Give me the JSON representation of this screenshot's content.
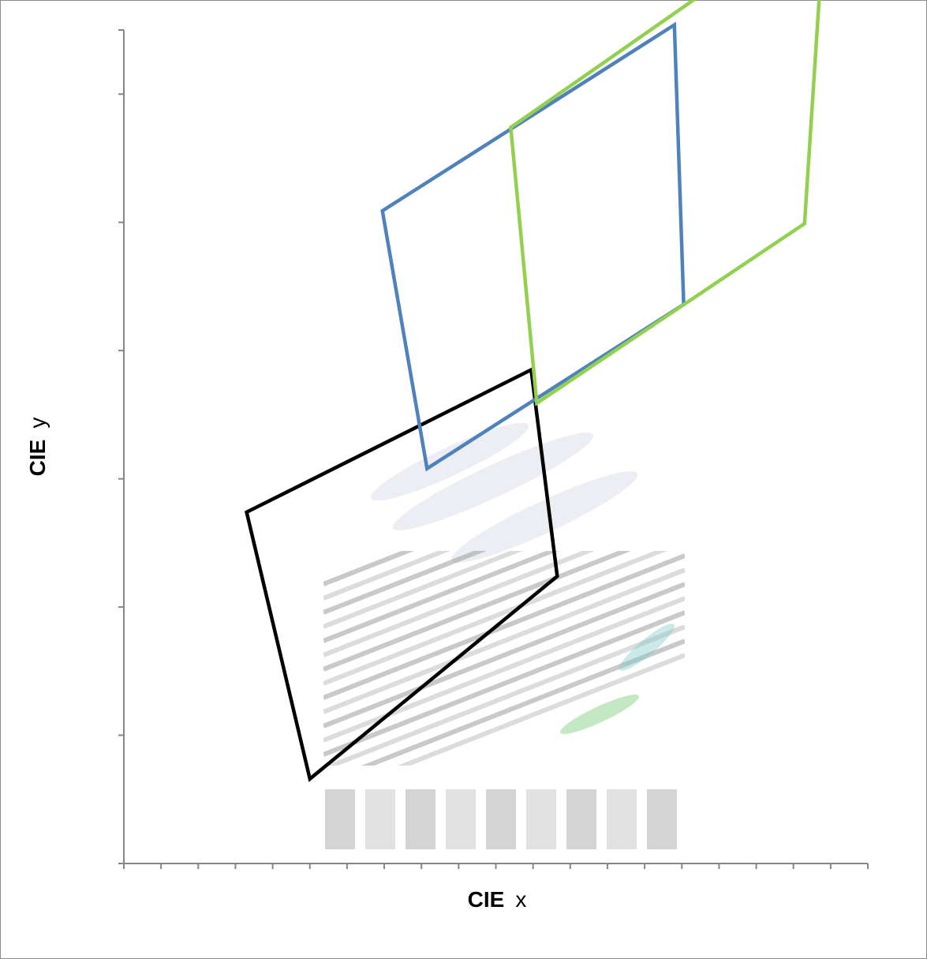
{
  "chart_data": {
    "type": "line",
    "title": "",
    "xlabel": {
      "bold": "CIE",
      "rest": "x"
    },
    "ylabel": {
      "bold": "CIE",
      "rest": "y"
    },
    "xlim": [
      0,
      0.4
    ],
    "ylim": [
      0,
      0.65
    ],
    "x_minor_tick_step": 0.02,
    "y_major_tick_step": 0.1,
    "grid": false,
    "legend": "none",
    "series": [
      {
        "color": "#000000",
        "closed": true,
        "x": [
          0.066,
          0.219,
          0.233,
          0.1
        ],
        "y": [
          0.274,
          0.385,
          0.224,
          0.066
        ]
      },
      {
        "color": "#4f81bd",
        "closed": true,
        "x": [
          0.139,
          0.296,
          0.301,
          0.163
        ],
        "y": [
          0.509,
          0.654,
          0.436,
          0.308
        ]
      },
      {
        "color": "#92d050",
        "closed": true,
        "x": [
          0.208,
          0.377,
          0.366,
          0.222
        ],
        "y": [
          0.574,
          0.745,
          0.499,
          0.359
        ]
      }
    ],
    "background_image": "cie-chromaticity-watermark"
  }
}
